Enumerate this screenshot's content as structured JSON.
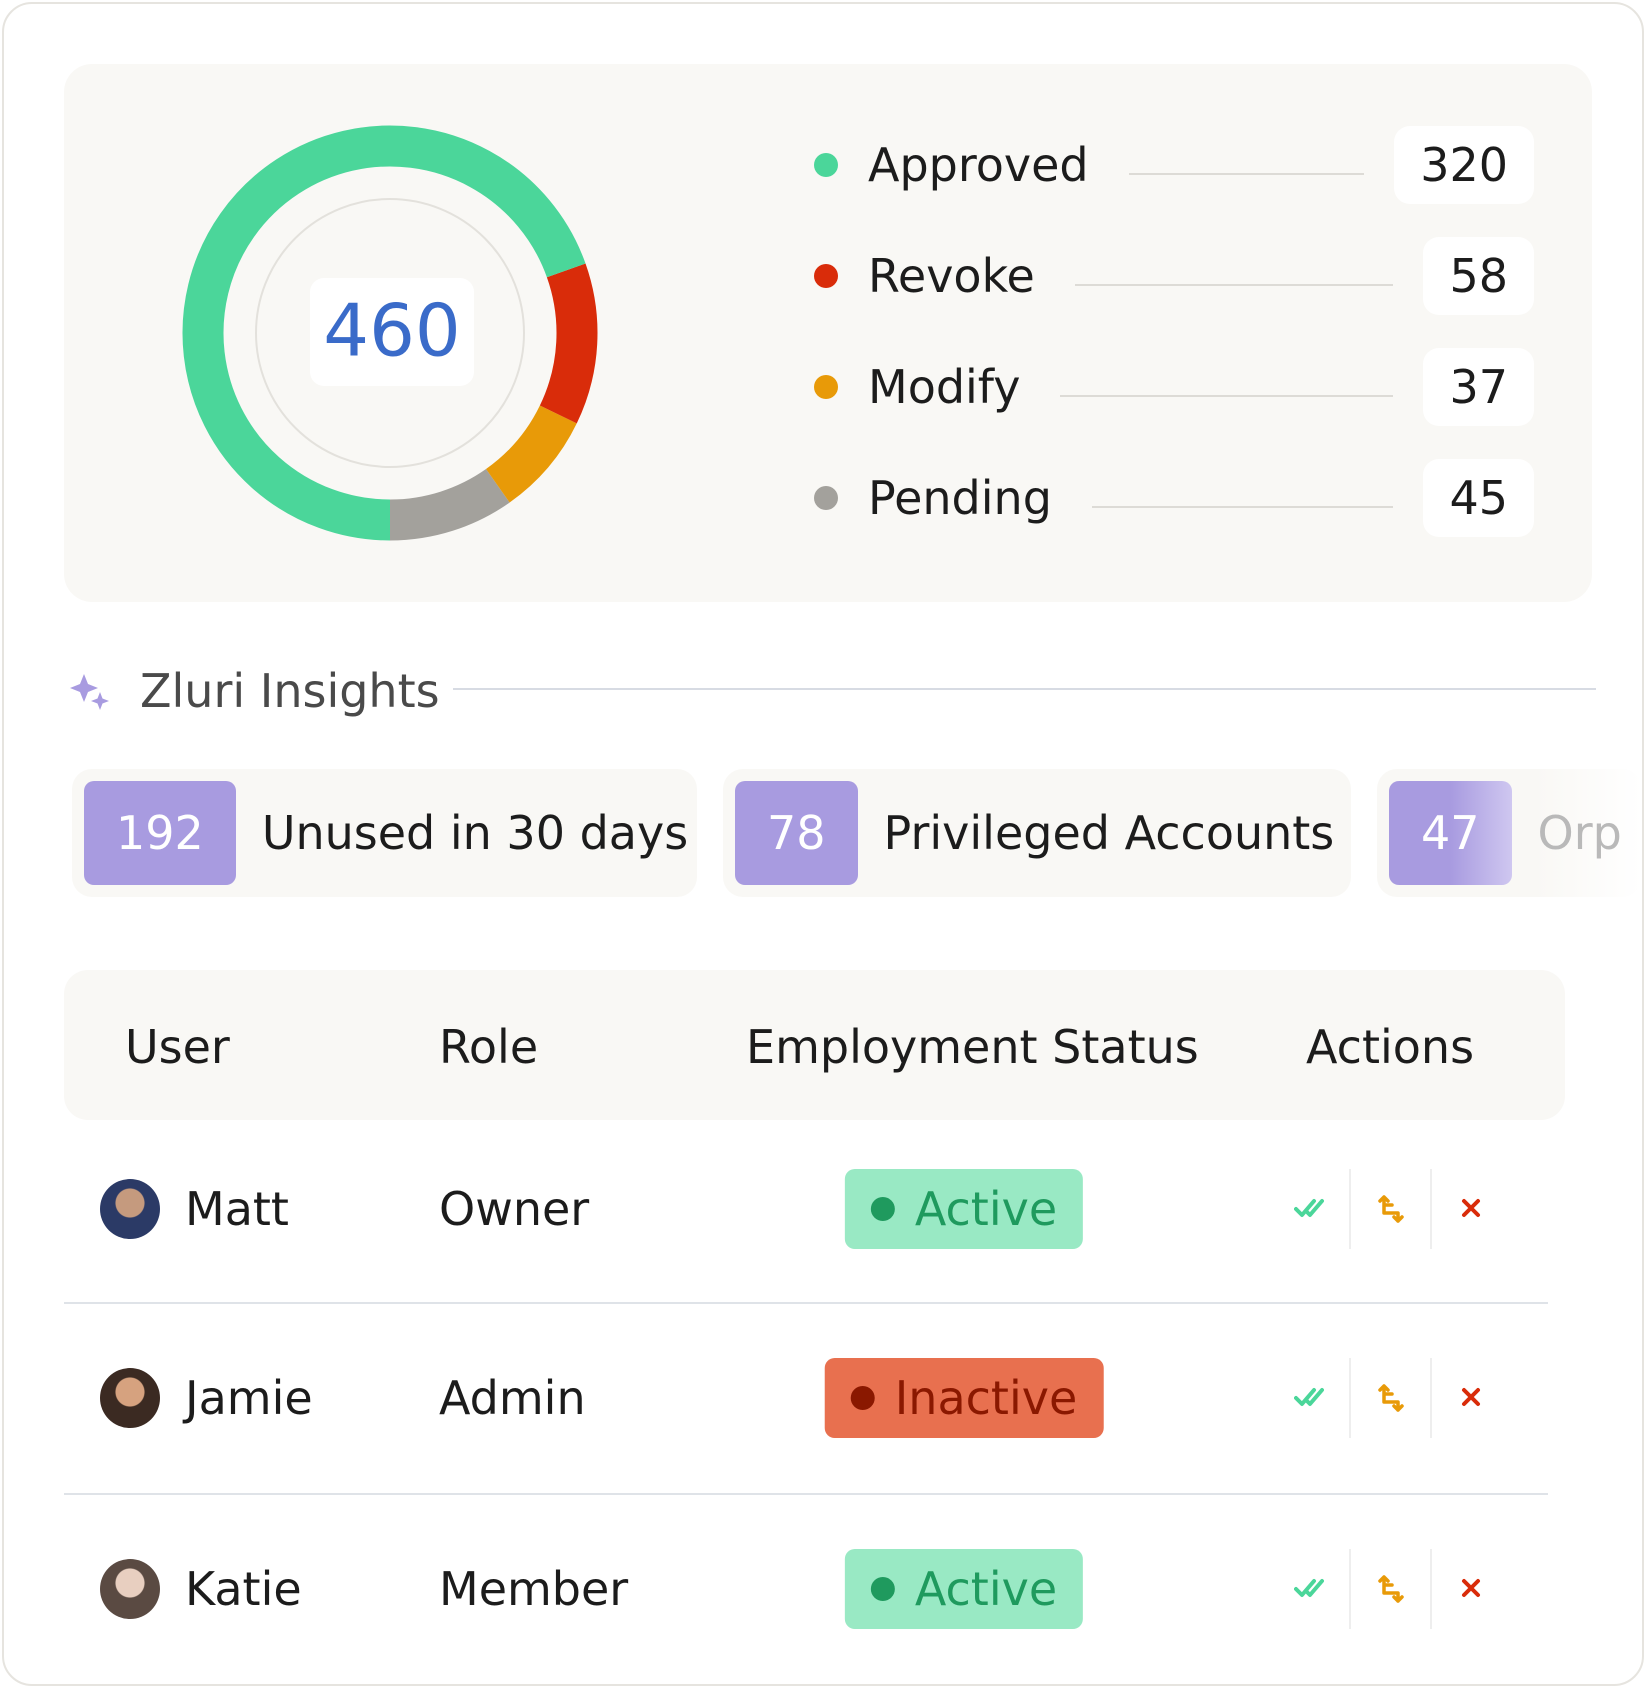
{
  "chart_data": {
    "type": "donut",
    "total": 460,
    "categories": [
      "Approved",
      "Revoke",
      "Modify",
      "Pending"
    ],
    "values": [
      320,
      58,
      37,
      45
    ],
    "colors": [
      "#4bd69a",
      "#d92c0a",
      "#e89a08",
      "#a3a19c"
    ]
  },
  "insights": {
    "title": "Zluri Insights",
    "items": [
      {
        "count": 192,
        "label": "Unused in 30 days"
      },
      {
        "count": 78,
        "label": "Privileged Accounts"
      },
      {
        "count": 47,
        "label": "Orp"
      }
    ]
  },
  "table": {
    "headers": [
      "User",
      "Role",
      "Employment Status",
      "Actions"
    ],
    "rows": [
      {
        "user": "Matt",
        "role": "Owner",
        "status": {
          "label": "Active",
          "color": "#1f9a5e",
          "background": "#99e9c4"
        }
      },
      {
        "user": "Jamie",
        "role": "Admin",
        "status": {
          "label": "Inactive",
          "color": "#8a1800",
          "background": "#e8704f"
        }
      },
      {
        "user": "Katie",
        "role": "Member",
        "status": {
          "label": "Active",
          "color": "#1f9a5e",
          "background": "#99e9c4"
        }
      }
    ]
  }
}
